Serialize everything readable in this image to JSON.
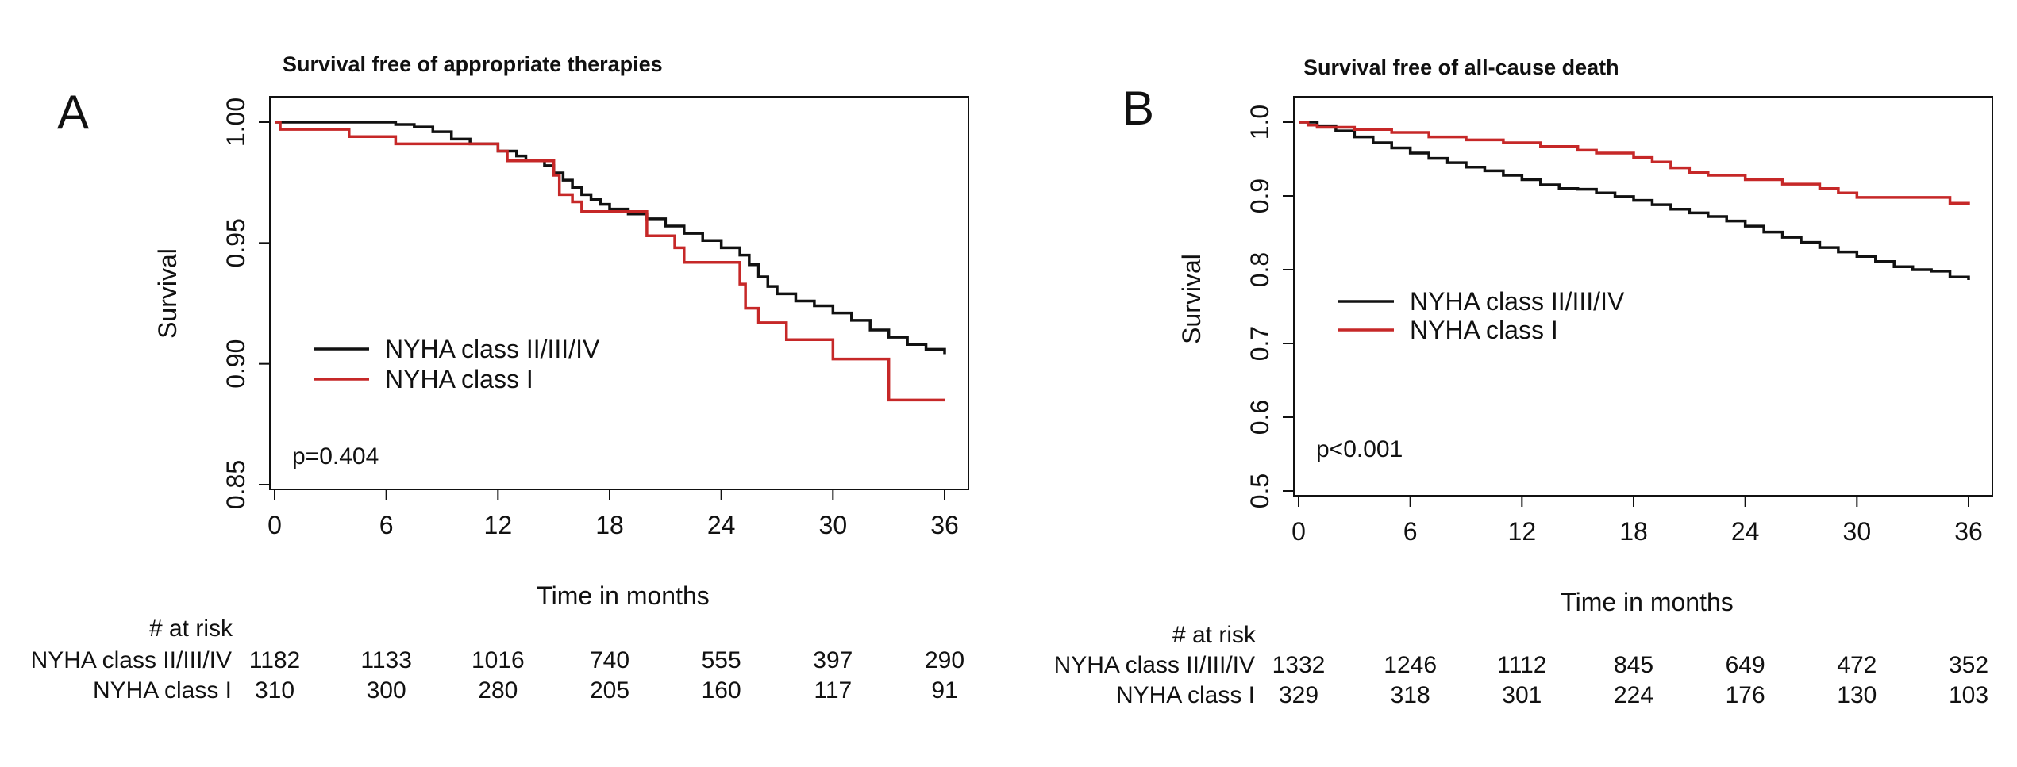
{
  "chart_data": [
    {
      "type": "line",
      "panel": "A",
      "title": "Survival free of appropriate therapies",
      "xlabel": "Time in months",
      "ylabel": "Survival",
      "xlim": [
        0,
        36
      ],
      "ylim": [
        0.85,
        1.0
      ],
      "x_ticks": [
        0,
        6,
        12,
        18,
        24,
        30,
        36
      ],
      "y_ticks": [
        0.85,
        0.9,
        0.95,
        1.0
      ],
      "y_tick_labels": [
        "0.85",
        "0.90",
        "0.95",
        "1.00"
      ],
      "legend_position": "center-left",
      "annotation": "p=0.404",
      "series": [
        {
          "name": "NYHA class II/III/IV",
          "color": "#111111",
          "step": [
            [
              0,
              1.0
            ],
            [
              4,
              1.0
            ],
            [
              6.5,
              0.999
            ],
            [
              7.5,
              0.998
            ],
            [
              8.5,
              0.996
            ],
            [
              9.5,
              0.993
            ],
            [
              10.5,
              0.991
            ],
            [
              12,
              0.988
            ],
            [
              13,
              0.986
            ],
            [
              13.5,
              0.984
            ],
            [
              14.5,
              0.982
            ],
            [
              15,
              0.979
            ],
            [
              15.5,
              0.976
            ],
            [
              16,
              0.973
            ],
            [
              16.5,
              0.97
            ],
            [
              17,
              0.968
            ],
            [
              17.5,
              0.966
            ],
            [
              18,
              0.964
            ],
            [
              19,
              0.962
            ],
            [
              20,
              0.96
            ],
            [
              21,
              0.957
            ],
            [
              22,
              0.954
            ],
            [
              23,
              0.951
            ],
            [
              24,
              0.948
            ],
            [
              25,
              0.945
            ],
            [
              25.5,
              0.941
            ],
            [
              26,
              0.936
            ],
            [
              26.5,
              0.932
            ],
            [
              27,
              0.929
            ],
            [
              28,
              0.926
            ],
            [
              29,
              0.924
            ],
            [
              30,
              0.921
            ],
            [
              31,
              0.918
            ],
            [
              32,
              0.914
            ],
            [
              33,
              0.911
            ],
            [
              34,
              0.908
            ],
            [
              35,
              0.906
            ],
            [
              36,
              0.904
            ]
          ]
        },
        {
          "name": "NYHA class I",
          "color": "#c62828",
          "step": [
            [
              0,
              1.0
            ],
            [
              0.3,
              0.997
            ],
            [
              4,
              0.994
            ],
            [
              6.5,
              0.991
            ],
            [
              12,
              0.988
            ],
            [
              12.5,
              0.984
            ],
            [
              15,
              0.978
            ],
            [
              15.3,
              0.97
            ],
            [
              16,
              0.967
            ],
            [
              16.5,
              0.963
            ],
            [
              20,
              0.953
            ],
            [
              21.5,
              0.948
            ],
            [
              22,
              0.942
            ],
            [
              25,
              0.933
            ],
            [
              25.3,
              0.923
            ],
            [
              26,
              0.917
            ],
            [
              27.5,
              0.91
            ],
            [
              30,
              0.902
            ],
            [
              33,
              0.885
            ],
            [
              36,
              0.885
            ]
          ]
        }
      ],
      "risk_table": {
        "header": "# at risk",
        "times": [
          0,
          6,
          12,
          18,
          24,
          30,
          36
        ],
        "rows": [
          {
            "label": "NYHA class II/III/IV",
            "values": [
              "1182",
              "1133",
              "1016",
              "740",
              "555",
              "397",
              "290"
            ]
          },
          {
            "label": "NYHA class I",
            "values": [
              "310",
              "300",
              "280",
              "205",
              "160",
              "117",
              "91"
            ]
          }
        ]
      }
    },
    {
      "type": "line",
      "panel": "B",
      "title": "Survival free of all-cause death",
      "xlabel": "Time in months",
      "ylabel": "Survival",
      "xlim": [
        0,
        36
      ],
      "ylim": [
        0.5,
        1.0
      ],
      "x_ticks": [
        0,
        6,
        12,
        18,
        24,
        30,
        36
      ],
      "y_ticks": [
        0.5,
        0.6,
        0.7,
        0.8,
        0.9,
        1.0
      ],
      "y_tick_labels": [
        "0.5",
        "0.6",
        "0.7",
        "0.8",
        "0.9",
        "1.0"
      ],
      "legend_position": "center-left",
      "annotation": "p<0.001",
      "series": [
        {
          "name": "NYHA class II/III/IV",
          "color": "#111111",
          "step": [
            [
              0,
              1.0
            ],
            [
              1,
              0.995
            ],
            [
              2,
              0.988
            ],
            [
              3,
              0.98
            ],
            [
              4,
              0.972
            ],
            [
              5,
              0.965
            ],
            [
              6,
              0.958
            ],
            [
              7,
              0.951
            ],
            [
              8,
              0.945
            ],
            [
              9,
              0.939
            ],
            [
              10,
              0.934
            ],
            [
              11,
              0.928
            ],
            [
              12,
              0.922
            ],
            [
              13,
              0.915
            ],
            [
              14,
              0.91
            ],
            [
              15,
              0.909
            ],
            [
              16,
              0.904
            ],
            [
              17,
              0.899
            ],
            [
              18,
              0.894
            ],
            [
              19,
              0.888
            ],
            [
              20,
              0.882
            ],
            [
              21,
              0.877
            ],
            [
              22,
              0.872
            ],
            [
              23,
              0.866
            ],
            [
              24,
              0.859
            ],
            [
              25,
              0.851
            ],
            [
              26,
              0.844
            ],
            [
              27,
              0.837
            ],
            [
              28,
              0.83
            ],
            [
              29,
              0.824
            ],
            [
              30,
              0.818
            ],
            [
              31,
              0.811
            ],
            [
              32,
              0.804
            ],
            [
              33,
              0.8
            ],
            [
              34,
              0.798
            ],
            [
              35,
              0.79
            ],
            [
              36,
              0.786
            ]
          ]
        },
        {
          "name": "NYHA class I",
          "color": "#c62828",
          "step": [
            [
              0,
              1.0
            ],
            [
              0.5,
              0.996
            ],
            [
              1,
              0.993
            ],
            [
              3,
              0.99
            ],
            [
              5,
              0.986
            ],
            [
              7,
              0.98
            ],
            [
              9,
              0.976
            ],
            [
              11,
              0.972
            ],
            [
              13,
              0.967
            ],
            [
              15,
              0.962
            ],
            [
              16,
              0.958
            ],
            [
              18,
              0.952
            ],
            [
              19,
              0.946
            ],
            [
              20,
              0.938
            ],
            [
              21,
              0.932
            ],
            [
              22,
              0.928
            ],
            [
              24,
              0.922
            ],
            [
              26,
              0.916
            ],
            [
              28,
              0.91
            ],
            [
              29,
              0.904
            ],
            [
              30,
              0.898
            ],
            [
              33,
              0.898
            ],
            [
              35,
              0.89
            ],
            [
              36,
              0.888
            ]
          ]
        }
      ],
      "risk_table": {
        "header": "# at risk",
        "times": [
          0,
          6,
          12,
          18,
          24,
          30,
          36
        ],
        "rows": [
          {
            "label": "NYHA class II/III/IV",
            "values": [
              "1332",
              "1246",
              "1112",
              "845",
              "649",
              "472",
              "352"
            ]
          },
          {
            "label": "NYHA class I",
            "values": [
              "329",
              "318",
              "301",
              "224",
              "176",
              "130",
              "103"
            ]
          }
        ]
      }
    }
  ]
}
